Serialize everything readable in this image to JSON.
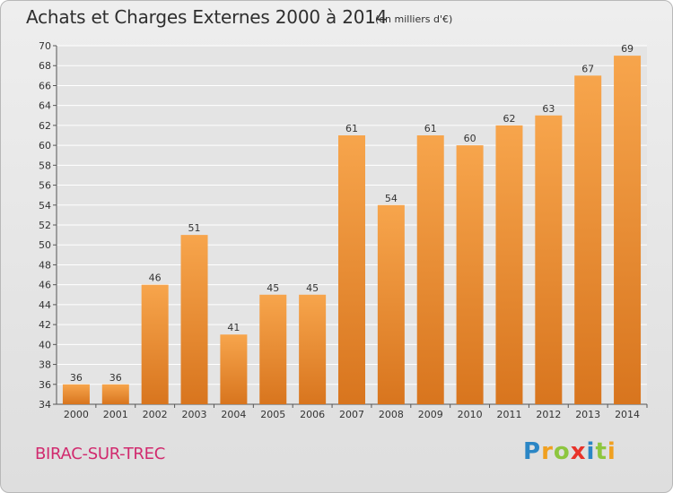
{
  "title": "Achats et Charges Externes 2000 à 2014",
  "subtitle": "(en milliers d'€)",
  "commune": "BIRAC-SUR-TREC",
  "logo_letters": [
    "P",
    "r",
    "o",
    "x",
    "i",
    "t",
    "i"
  ],
  "colors": {
    "bar_top": "#f7a54c",
    "bar_bottom": "#d8751e",
    "commune_text": "#d12a6e"
  },
  "chart_data": {
    "type": "bar",
    "title": "Achats et Charges Externes 2000 à 2014",
    "subtitle": "(en milliers d'€)",
    "categories": [
      "2000",
      "2001",
      "2002",
      "2003",
      "2004",
      "2005",
      "2006",
      "2007",
      "2008",
      "2009",
      "2010",
      "2011",
      "2012",
      "2013",
      "2014"
    ],
    "values": [
      36,
      36,
      46,
      51,
      41,
      45,
      45,
      61,
      54,
      61,
      60,
      62,
      63,
      67,
      69
    ],
    "ylim": [
      34,
      70
    ],
    "yticks": [
      34,
      36,
      38,
      40,
      42,
      44,
      46,
      48,
      50,
      52,
      54,
      56,
      58,
      60,
      62,
      64,
      66,
      68,
      70
    ],
    "grid": true,
    "legend": "none"
  }
}
